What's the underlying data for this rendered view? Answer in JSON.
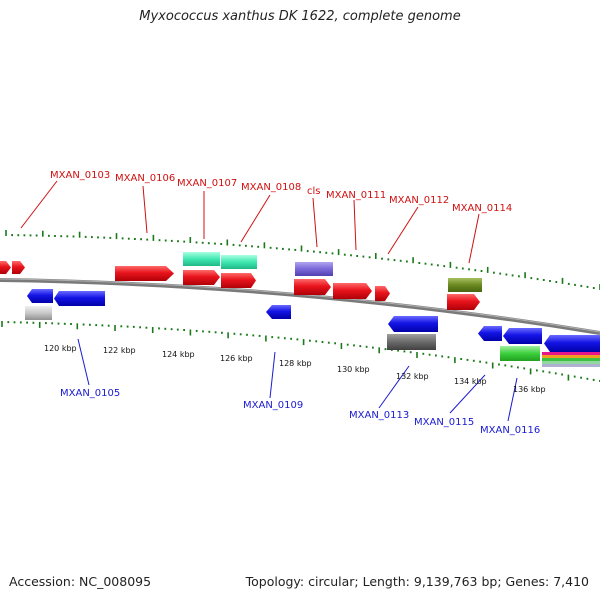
{
  "title": "Myxococcus xanthus DK 1622, complete genome",
  "footer": {
    "accession": "Accession: NC_008095",
    "summary": "Topology: circular; Length: 9,139,763 bp; Genes: 7,410"
  },
  "ticks": [
    "120 kbp",
    "122 kbp",
    "124 kbp",
    "126 kbp",
    "128 kbp",
    "130 kbp",
    "132 kbp",
    "134 kbp",
    "136 kbp"
  ],
  "gene_labels_forward": [
    "MXAN_0103",
    "MXAN_0106",
    "MXAN_0107",
    "MXAN_0108",
    "cls",
    "MXAN_0111",
    "MXAN_0112",
    "MXAN_0114"
  ],
  "gene_labels_reverse": [
    "MXAN_0105",
    "MXAN_0109",
    "MXAN_0113",
    "MXAN_0115",
    "MXAN_0116"
  ],
  "colors": {
    "forward_label": "#d01010",
    "reverse_label": "#1a1ad0",
    "cds_red": "#e8141c",
    "cds_blue": "#1414e6",
    "backbone": "#808080",
    "tick_green": "#1a7a1a",
    "teal": "#3fe8b0",
    "purple": "#7b68d8",
    "olive": "#6b8a22",
    "gray_dark": "#6a6a6a",
    "gray_light": "#c8c8c8",
    "green": "#3ccf3c"
  }
}
